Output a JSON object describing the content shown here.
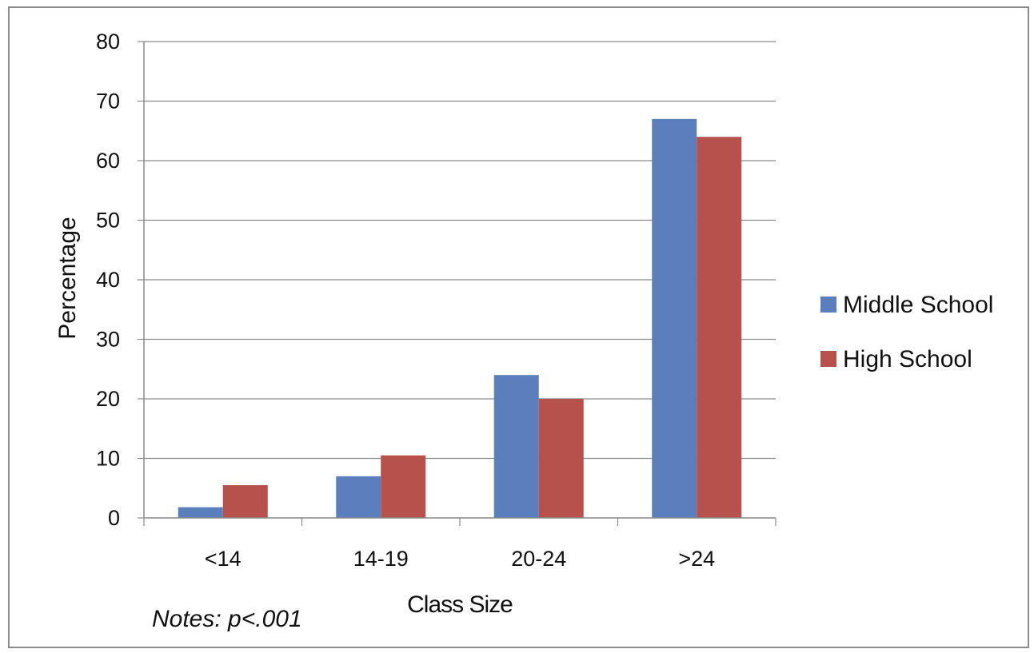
{
  "chart_data": {
    "type": "bar",
    "categories": [
      "<14",
      "14-19",
      "20-24",
      ">24"
    ],
    "series": [
      {
        "name": "Middle School",
        "values": [
          1.8,
          7,
          24,
          67
        ],
        "color": "#5b7fbd"
      },
      {
        "name": "High School",
        "values": [
          5.5,
          10.5,
          20,
          64
        ],
        "color": "#b7514c"
      }
    ],
    "xlabel": "Class Size",
    "ylabel": "Percentage",
    "ylim": [
      0,
      80
    ],
    "yticks": [
      0,
      10,
      20,
      30,
      40,
      50,
      60,
      70,
      80
    ],
    "grid": true,
    "legend_position": "right"
  },
  "note": "Notes: p<.001"
}
